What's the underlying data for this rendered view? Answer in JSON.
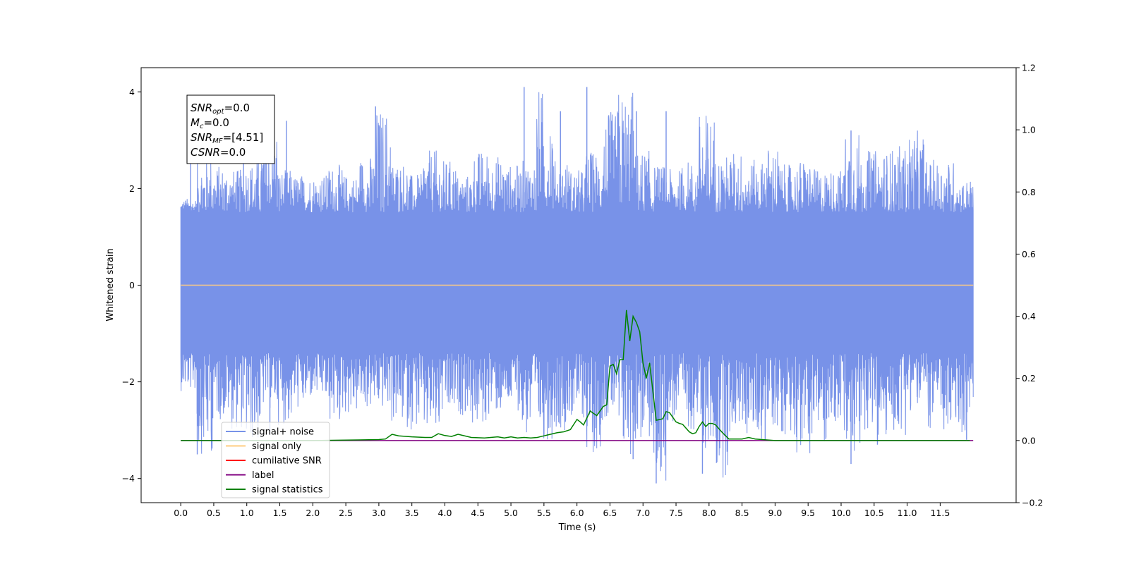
{
  "chart_data": {
    "type": "line",
    "xlabel": "Time (s)",
    "ylabel": "Whitened strain",
    "xlim": [
      -0.6,
      12.65
    ],
    "ylim": [
      -4.5,
      4.5
    ],
    "y2lim": [
      -0.2,
      1.2
    ],
    "x_ticks": [
      0.0,
      0.5,
      1.0,
      1.5,
      2.0,
      2.5,
      3.0,
      3.5,
      4.0,
      4.5,
      5.0,
      5.5,
      6.0,
      6.5,
      7.0,
      7.5,
      8.0,
      8.5,
      9.0,
      9.5,
      10.0,
      10.5,
      11.0,
      11.5
    ],
    "x_tick_labels": [
      "0.0",
      "0.5",
      "1.0",
      "1.5",
      "2.0",
      "2.5",
      "3.0",
      "3.5",
      "4.0",
      "4.5",
      "5.0",
      "5.5",
      "6.0",
      "6.5",
      "7.0",
      "7.5",
      "8.0",
      "8.5",
      "9.0",
      "9.5",
      "10.0",
      "10.5",
      "11.0",
      "11.5"
    ],
    "y_ticks": [
      -4,
      -2,
      0,
      2,
      4
    ],
    "y_tick_labels": [
      "−4",
      "−2",
      "0",
      "2",
      "4"
    ],
    "y2_ticks": [
      -0.2,
      0.0,
      0.2,
      0.4,
      0.6,
      0.8,
      1.0,
      1.2
    ],
    "y2_tick_labels": [
      "−0.2",
      "0.0",
      "0.2",
      "0.4",
      "0.6",
      "0.8",
      "1.0",
      "1.2"
    ],
    "grid": false,
    "legend": {
      "position": "lower-left",
      "entries": [
        {
          "label": "signal+ noise",
          "color": "#7892e8"
        },
        {
          "label": "signal only",
          "color": "#ffcc80"
        },
        {
          "label": "cumilative SNR",
          "color": "#ff0000"
        },
        {
          "label": "label",
          "color": "#800080"
        },
        {
          "label": "signal statistics",
          "color": "#008000"
        }
      ]
    },
    "annotation_box": {
      "lines": [
        {
          "base": "SNR",
          "sub": "opt",
          "rest": "=0.0"
        },
        {
          "base": "M",
          "sub": "c",
          "rest": "=0.0"
        },
        {
          "base": "SNR",
          "sub": "MF",
          "rest": "=[4.51]"
        },
        {
          "base": "CSNR",
          "sub": "",
          "rest": "=0.0"
        }
      ]
    },
    "series": [
      {
        "name": "signal+ noise",
        "axis": "left",
        "color": "#7892e8",
        "style": "dense-noise",
        "x_range": [
          0.0,
          12.0
        ],
        "band": [
          -1.4,
          1.5
        ],
        "envelope_high": [
          1.8,
          2.7,
          2.5,
          2.4,
          2.6,
          3.4,
          2.4,
          2.3,
          2.3,
          2.5,
          2.3,
          2.7,
          3.7,
          2.6,
          2.3,
          2.8,
          2.6,
          2.3,
          2.8,
          2.7,
          2.5,
          2.6,
          4.1,
          2.6,
          2.4,
          2.8,
          3.6,
          4.1,
          2.8,
          2.5,
          2.4,
          2.6,
          3.6,
          2.7,
          2.8,
          2.6,
          2.9,
          2.5,
          2.6,
          2.4,
          2.4,
          3.2,
          2.8,
          2.8,
          2.9,
          3.2,
          2.6,
          2.6,
          2.2
        ],
        "envelope_low": [
          -2.2,
          -3.5,
          -2.8,
          -3.0,
          -3.3,
          -2.6,
          -2.9,
          -2.6,
          -2.4,
          -2.9,
          -2.7,
          -2.6,
          -2.6,
          -2.9,
          -3.0,
          -3.2,
          -2.8,
          -2.7,
          -3.0,
          -2.7,
          -2.6,
          -3.2,
          -3.2,
          -3.0,
          -2.8,
          -3.5,
          -2.8,
          -3.6,
          -3.3,
          -4.1,
          -2.9,
          -3.0,
          -3.5,
          -4.0,
          -3.0,
          -3.2,
          -3.0,
          -3.1,
          -3.5,
          -3.3,
          -2.9,
          -3.7,
          -3.0,
          -3.3,
          -3.1,
          -2.6,
          -3.0,
          -3.2,
          -3.1
        ],
        "spikes": [
          [
            0.15,
            2.7
          ],
          [
            0.25,
            -3.5
          ],
          [
            0.95,
            3.3
          ],
          [
            1.35,
            -3.1
          ],
          [
            1.6,
            3.4
          ],
          [
            2.95,
            3.7
          ],
          [
            5.2,
            4.1
          ],
          [
            5.5,
            -3.1
          ],
          [
            5.75,
            3.6
          ],
          [
            6.15,
            4.1
          ],
          [
            6.35,
            -3.1
          ],
          [
            6.9,
            3.6
          ],
          [
            6.85,
            -3.6
          ],
          [
            7.2,
            -4.1
          ],
          [
            7.35,
            3.6
          ],
          [
            7.9,
            -3.9
          ],
          [
            8.85,
            -3.2
          ],
          [
            10.15,
            -3.7
          ],
          [
            10.15,
            3.2
          ],
          [
            10.55,
            -3.3
          ],
          [
            11.9,
            -3.2
          ]
        ]
      },
      {
        "name": "signal only",
        "axis": "left",
        "color": "#ffcc80",
        "x": [
          0.0,
          12.0
        ],
        "y": [
          0.0,
          0.0
        ]
      },
      {
        "name": "label",
        "axis": "right",
        "color": "#800080",
        "x": [
          0.0,
          12.0
        ],
        "y": [
          0.0,
          0.0
        ]
      },
      {
        "name": "signal statistics",
        "axis": "right",
        "color": "#008000",
        "x": [
          0.0,
          2.0,
          2.7,
          3.0,
          3.1,
          3.2,
          3.3,
          3.5,
          3.7,
          3.8,
          3.9,
          4.0,
          4.1,
          4.2,
          4.4,
          4.6,
          4.8,
          4.9,
          5.0,
          5.1,
          5.2,
          5.3,
          5.4,
          5.5,
          5.6,
          5.7,
          5.8,
          5.9,
          6.0,
          6.05,
          6.1,
          6.2,
          6.3,
          6.4,
          6.45,
          6.5,
          6.55,
          6.6,
          6.65,
          6.7,
          6.75,
          6.8,
          6.85,
          6.9,
          6.95,
          7.0,
          7.05,
          7.1,
          7.2,
          7.3,
          7.35,
          7.4,
          7.5,
          7.55,
          7.6,
          7.7,
          7.75,
          7.8,
          7.85,
          7.9,
          7.95,
          8.0,
          8.05,
          8.1,
          8.2,
          8.3,
          8.5,
          8.6,
          8.7,
          9.0,
          9.5,
          10.0,
          11.0,
          11.95
        ],
        "y": [
          0.0,
          0.0,
          0.002,
          0.003,
          0.005,
          0.02,
          0.015,
          0.012,
          0.01,
          0.01,
          0.022,
          0.016,
          0.013,
          0.02,
          0.01,
          0.008,
          0.012,
          0.008,
          0.012,
          0.008,
          0.01,
          0.008,
          0.01,
          0.015,
          0.02,
          0.025,
          0.028,
          0.035,
          0.068,
          0.06,
          0.05,
          0.095,
          0.08,
          0.11,
          0.115,
          0.24,
          0.245,
          0.215,
          0.26,
          0.26,
          0.42,
          0.32,
          0.4,
          0.38,
          0.35,
          0.25,
          0.2,
          0.25,
          0.065,
          0.07,
          0.093,
          0.09,
          0.06,
          0.055,
          0.052,
          0.028,
          0.022,
          0.025,
          0.045,
          0.06,
          0.045,
          0.055,
          0.055,
          0.05,
          0.026,
          0.005,
          0.005,
          0.01,
          0.005,
          0.0,
          0.0,
          0.0,
          0.0,
          0.0
        ]
      }
    ]
  }
}
